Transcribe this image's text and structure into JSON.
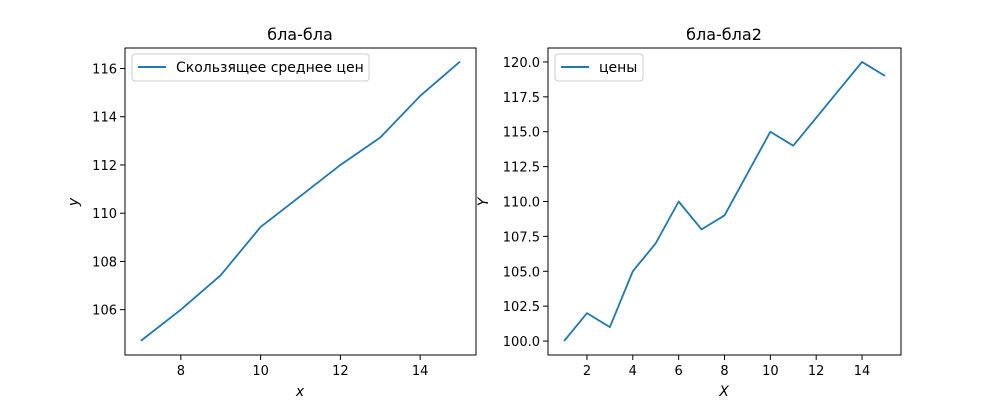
{
  "chart_data": [
    {
      "type": "line",
      "title": "бла-бла",
      "xlabel": "x",
      "ylabel": "y",
      "xlim": [
        6.6,
        15.4
      ],
      "ylim": [
        104.12,
        116.85
      ],
      "xticks": [
        8,
        10,
        12,
        14
      ],
      "yticks": [
        106,
        108,
        110,
        112,
        114,
        116
      ],
      "xtick_labels": [
        "8",
        "10",
        "12",
        "14"
      ],
      "ytick_labels": [
        "106",
        "108",
        "110",
        "112",
        "114",
        "116"
      ],
      "legend_position": "upper-left",
      "colors": {
        "line": "#1f77b4"
      },
      "series": [
        {
          "name": "Скользящее среднее цен",
          "x": [
            7,
            8,
            9,
            10,
            11,
            12,
            13,
            14,
            15
          ],
          "y": [
            104.71,
            106.0,
            107.43,
            109.43,
            110.71,
            112.0,
            113.14,
            114.86,
            116.29
          ]
        }
      ]
    },
    {
      "type": "line",
      "title": "бла-бла2",
      "xlabel": "X",
      "ylabel": "Y",
      "xlim": [
        0.3,
        15.7
      ],
      "ylim": [
        99.0,
        121.0
      ],
      "xticks": [
        2,
        4,
        6,
        8,
        10,
        12,
        14
      ],
      "yticks": [
        100.0,
        102.5,
        105.0,
        107.5,
        110.0,
        112.5,
        115.0,
        117.5,
        120.0
      ],
      "xtick_labels": [
        "2",
        "4",
        "6",
        "8",
        "10",
        "12",
        "14"
      ],
      "ytick_labels": [
        "100.0",
        "102.5",
        "105.0",
        "107.5",
        "110.0",
        "112.5",
        "115.0",
        "117.5",
        "120.0"
      ],
      "legend_position": "upper-left",
      "colors": {
        "line": "#1f77b4"
      },
      "series": [
        {
          "name": "цены",
          "x": [
            1,
            2,
            3,
            4,
            5,
            6,
            7,
            8,
            9,
            10,
            11,
            12,
            13,
            14,
            15
          ],
          "y": [
            100,
            102,
            101,
            105,
            107,
            110,
            108,
            109,
            112,
            115,
            114,
            116,
            118,
            120,
            119
          ]
        }
      ]
    }
  ]
}
